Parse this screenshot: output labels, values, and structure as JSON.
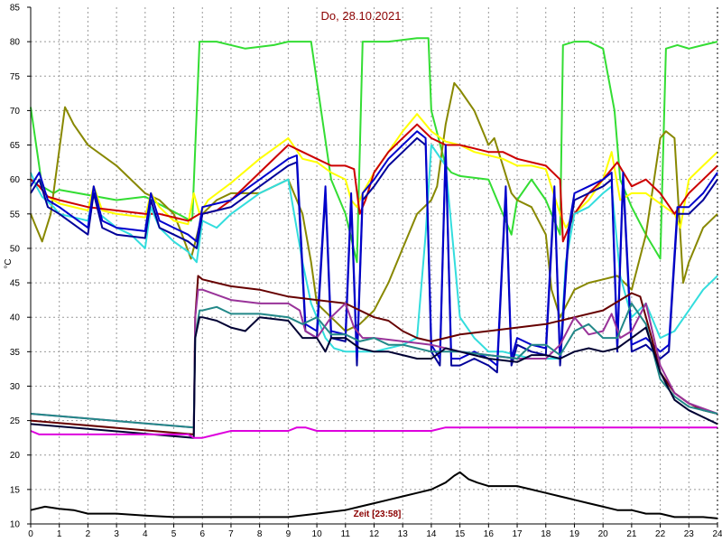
{
  "chart_data": {
    "type": "line",
    "title": "Do, 28.10.2021",
    "ylabel": "°C",
    "time_label": "Zeit [23:58]",
    "xlim": [
      0,
      24
    ],
    "ylim": [
      10,
      85
    ],
    "x_ticks": [
      "0",
      "1",
      "2",
      "3",
      "4",
      "5",
      "6",
      "7",
      "8",
      "9",
      "10",
      "11",
      "12",
      "13",
      "14",
      "15",
      "16",
      "17",
      "18",
      "19",
      "20",
      "21",
      "22",
      "23",
      "24"
    ],
    "y_ticks": [
      "10",
      "15",
      "20",
      "25",
      "30",
      "35",
      "40",
      "45",
      "50",
      "55",
      "60",
      "65",
      "70",
      "75",
      "80",
      "85"
    ],
    "grid": true,
    "series": [
      {
        "color": "#33dd33",
        "x": [
          0,
          0.4,
          0.8,
          1,
          3,
          4,
          5.6,
          5.65,
          5.9,
          6.5,
          7.5,
          8.5,
          9,
          9.2,
          9.8,
          10.5,
          11,
          11.4,
          11.6,
          12,
          12.5,
          13.5,
          13.9,
          14,
          14.5,
          14.7,
          15,
          16,
          16.5,
          16.8,
          17,
          17.5,
          18,
          18.5,
          18.6,
          19,
          19.5,
          20,
          20.4,
          20.6,
          21,
          21.5,
          22,
          22.2,
          22.6,
          23,
          23.5,
          24
        ],
        "y": [
          70.5,
          59,
          58,
          58.5,
          57,
          57.5,
          54,
          54.5,
          80,
          80,
          79,
          79.5,
          80,
          80,
          80,
          60,
          55,
          48,
          80,
          80,
          80,
          80.5,
          80.5,
          70,
          62,
          61,
          60.5,
          60,
          55,
          52,
          57,
          60,
          57,
          52,
          79.5,
          80,
          80,
          79,
          70,
          60,
          56,
          52,
          48.5,
          79,
          79.5,
          79,
          79.5,
          80
        ]
      },
      {
        "color": "#888800",
        "x": [
          0,
          0.2,
          0.4,
          0.7,
          1.2,
          1.5,
          2,
          3,
          4,
          4.5,
          5,
          5.2,
          5.6,
          6,
          6.5,
          7,
          8,
          9,
          9.5,
          9.8,
          10,
          10.5,
          11,
          11.5,
          12,
          12.5,
          13,
          13.5,
          14,
          14.2,
          14.5,
          14.8,
          15,
          15.5,
          16,
          16.2,
          16.5,
          16.8,
          17,
          17.5,
          18,
          18.2,
          18.5,
          19,
          19.5,
          20,
          20.5,
          21,
          21.5,
          22,
          22.2,
          22.5,
          22.8,
          23,
          23.5,
          24
        ],
        "y": [
          55,
          53,
          51,
          55,
          70.5,
          68,
          65,
          62,
          58,
          57,
          55,
          53,
          48.5,
          55,
          57,
          58,
          58,
          60,
          55,
          48,
          42,
          40,
          38,
          39,
          41,
          45,
          50,
          55,
          57,
          59,
          68,
          74,
          73,
          70,
          65,
          66,
          62,
          58,
          57,
          56,
          52,
          44,
          40,
          44,
          45,
          45.5,
          46,
          44,
          52,
          66,
          67,
          66,
          45,
          48,
          53,
          55
        ]
      },
      {
        "color": "#ffff00",
        "x": [
          0,
          0.3,
          0.6,
          1,
          2,
          2.2,
          2.5,
          3,
          4,
          4.2,
          4.5,
          5,
          5.5,
          5.7,
          5.9,
          6.2,
          7,
          8,
          9,
          9.5,
          10,
          10.5,
          11,
          11.2,
          11.4,
          11.6,
          12,
          12.5,
          13,
          13.5,
          14,
          14.5,
          15,
          15.5,
          16,
          16.5,
          17,
          17.5,
          18,
          18.5,
          18.7,
          19,
          19.5,
          20,
          20.3,
          20.6,
          21,
          21.5,
          22,
          22.5,
          22.7,
          23,
          23.5,
          24
        ],
        "y": [
          60,
          59,
          57.5,
          56.5,
          55.5,
          59,
          55.5,
          55,
          54.5,
          58,
          56,
          54,
          53.5,
          58,
          55,
          57,
          59.5,
          63,
          66,
          63,
          62.5,
          61,
          60,
          57,
          56,
          58,
          61,
          64,
          67,
          69.5,
          67,
          65.5,
          65,
          64,
          63.5,
          63,
          62,
          62,
          61.5,
          55,
          53,
          55,
          57,
          60,
          64,
          57,
          58,
          58,
          56.5,
          55,
          53,
          60,
          62,
          64
        ]
      },
      {
        "color": "#cc0000",
        "x": [
          0,
          0.3,
          0.6,
          1,
          2,
          3,
          4,
          4.5,
          5,
          5.5,
          5.9,
          6,
          6.5,
          7,
          8,
          9,
          9.5,
          10,
          10.5,
          11,
          11.3,
          11.5,
          11.7,
          12,
          12.5,
          13,
          13.5,
          14,
          14.5,
          15,
          15.5,
          16,
          16.5,
          17,
          17.5,
          18,
          18.5,
          18.6,
          19,
          19.5,
          20,
          20.5,
          21,
          21.5,
          22,
          22.5,
          23,
          23.5,
          24
        ],
        "y": [
          60,
          59,
          57.5,
          57,
          56,
          55.5,
          55,
          55,
          54.5,
          54,
          55,
          55,
          55.5,
          57,
          61,
          65,
          64,
          63,
          62,
          62,
          61.5,
          55,
          57,
          61,
          64,
          66,
          68,
          66,
          65,
          65,
          64.5,
          64,
          64,
          63,
          62.5,
          62,
          60,
          51,
          55,
          58,
          60,
          62.5,
          59,
          60,
          58,
          55,
          58,
          60,
          62
        ]
      },
      {
        "color": "#33dddd",
        "x": [
          0,
          0.2,
          0.4,
          0.8,
          1,
          2,
          2.2,
          2.4,
          3,
          3.5,
          4,
          4.2,
          4.5,
          5,
          5.5,
          5.8,
          6,
          6.5,
          7,
          8,
          9,
          9.5,
          9.8,
          10,
          10.3,
          10.6,
          11,
          11.5,
          12,
          12.5,
          13,
          13.5,
          13.8,
          14,
          14.5,
          15,
          15.5,
          16,
          16.5,
          17,
          17.5,
          18,
          18.5,
          18.7,
          19,
          19.5,
          20,
          20.3,
          20.6,
          21,
          21.5,
          22,
          22.5,
          23,
          23.5,
          24
        ],
        "y": [
          61,
          59,
          57.5,
          56,
          55,
          54,
          58,
          55,
          53,
          52,
          50,
          56,
          53,
          51,
          49.5,
          48,
          54,
          53,
          55,
          58,
          60,
          48,
          42,
          40,
          37,
          35.5,
          35,
          35,
          35,
          35.5,
          36,
          37,
          52,
          65,
          62,
          40,
          37,
          35,
          35,
          34.5,
          34,
          34,
          34,
          48,
          55,
          56,
          58,
          59,
          46,
          40,
          42,
          37,
          38,
          41,
          44,
          46
        ]
      },
      {
        "color": "#000099",
        "x": [
          0,
          0.3,
          0.6,
          1,
          2,
          2.2,
          2.5,
          3,
          4,
          4.2,
          4.5,
          5,
          5.5,
          5.8,
          6,
          6.5,
          7,
          8,
          9,
          9.3,
          9.6,
          10,
          10.3,
          10.5,
          11,
          11.2,
          11.4,
          11.6,
          12,
          12.5,
          13,
          13.5,
          13.8,
          14,
          14.3,
          14.5,
          14.7,
          15,
          15.5,
          16,
          16.3,
          16.6,
          16.8,
          17,
          17.5,
          18,
          18.3,
          18.5,
          18.8,
          19,
          19.5,
          20,
          20.3,
          20.5,
          20.7,
          21,
          21.5,
          22,
          22.3,
          22.6,
          23,
          23.5,
          24
        ],
        "y": [
          58,
          60,
          56,
          55,
          52,
          58,
          53,
          52,
          51.5,
          57,
          53,
          52,
          51,
          50,
          55,
          55.5,
          56,
          59,
          62,
          62.5,
          38,
          37,
          58,
          37,
          36.5,
          57,
          33,
          57,
          59,
          62,
          64,
          66,
          65,
          35,
          33,
          64,
          33,
          33,
          34,
          33,
          32,
          58,
          33,
          36,
          35,
          34.5,
          58,
          33,
          52,
          57,
          58,
          59,
          60,
          35,
          60,
          35,
          36,
          34,
          35,
          55,
          55,
          57,
          60
        ]
      },
      {
        "color": "#0000cc",
        "x": [
          0,
          0.3,
          0.6,
          1,
          2,
          2.2,
          2.5,
          3,
          4,
          4.2,
          4.5,
          5,
          5.5,
          5.8,
          6,
          6.5,
          7,
          8,
          9,
          9.3,
          9.6,
          10,
          10.3,
          10.5,
          11,
          11.2,
          11.4,
          11.6,
          12,
          12.5,
          13,
          13.5,
          13.8,
          14,
          14.3,
          14.5,
          14.7,
          15,
          15.5,
          16,
          16.3,
          16.6,
          16.8,
          17,
          17.5,
          18,
          18.3,
          18.5,
          18.8,
          19,
          19.5,
          20,
          20.3,
          20.5,
          20.7,
          21,
          21.5,
          22,
          22.3,
          22.6,
          23,
          23.5,
          24
        ],
        "y": [
          59,
          61,
          57,
          56,
          53,
          59,
          54,
          53,
          52.5,
          58,
          54,
          53,
          52,
          51,
          56,
          56.5,
          57,
          60,
          63,
          63.5,
          39,
          38,
          59,
          38,
          37.5,
          58,
          34,
          58,
          60,
          63,
          65,
          67,
          66,
          36,
          34,
          65,
          34,
          34,
          35,
          34,
          33,
          59,
          34,
          37,
          36,
          35.5,
          59,
          34,
          53,
          58,
          59,
          60,
          61,
          36,
          61,
          36,
          37,
          35,
          36,
          56,
          56,
          58,
          61
        ]
      },
      {
        "color": "#660000",
        "x": [
          0,
          5.7,
          5.75,
          5.85,
          6,
          6.5,
          7,
          8,
          9,
          10,
          11,
          12,
          12.5,
          13,
          13.5,
          14,
          14.5,
          15,
          16,
          17,
          18,
          19,
          20,
          21,
          21.3,
          21.7,
          22,
          22.5,
          23,
          23.5,
          24
        ],
        "y": [
          25,
          23,
          40,
          46,
          45.5,
          45,
          44.5,
          44,
          43,
          42.5,
          42,
          40,
          39.5,
          38,
          37,
          36.5,
          37,
          37.5,
          38,
          38.5,
          39,
          40,
          41,
          43.5,
          43,
          37,
          32,
          29,
          27.5,
          26.5,
          26
        ]
      },
      {
        "color": "#993399",
        "x": [
          0,
          5.7,
          5.75,
          5.85,
          6,
          7,
          8,
          9,
          9.4,
          9.6,
          10,
          10.5,
          11,
          11.3,
          11.6,
          12,
          13,
          14,
          14.5,
          15,
          16,
          17,
          18,
          18.5,
          19,
          19.5,
          20,
          20.3,
          20.6,
          21,
          21.5,
          22,
          22.5,
          23,
          24
        ],
        "y": [
          26,
          24,
          40,
          44,
          44,
          42.5,
          42,
          42,
          41,
          38,
          37,
          40,
          42,
          38.5,
          37,
          37,
          36.5,
          36,
          35.5,
          35,
          34.5,
          34,
          34,
          36,
          40,
          37.5,
          38,
          40.5,
          37,
          38,
          42,
          33,
          29,
          27.5,
          26
        ]
      },
      {
        "color": "#228888",
        "x": [
          0,
          5.7,
          5.75,
          5.9,
          6,
          6.5,
          7,
          8,
          9,
          9.5,
          10,
          10.5,
          11,
          11.5,
          12,
          12.5,
          13,
          13.5,
          14,
          14.5,
          15,
          16,
          17,
          17.5,
          18,
          18.5,
          19,
          19.5,
          20,
          20.5,
          21,
          21.5,
          22,
          22.5,
          23,
          24
        ],
        "y": [
          26,
          24,
          37,
          41,
          41,
          41.5,
          40.5,
          40.5,
          40,
          39,
          40,
          37.5,
          37.5,
          36.5,
          37,
          36,
          36,
          35.5,
          35,
          35,
          35,
          34.5,
          34,
          36,
          36,
          34.5,
          38,
          39,
          37,
          37,
          42,
          39,
          31,
          28.5,
          27,
          26
        ]
      },
      {
        "color": "#000033",
        "x": [
          0,
          5.7,
          5.75,
          5.9,
          6,
          6.5,
          7,
          7.5,
          8,
          9,
          9.5,
          10,
          10.3,
          10.5,
          11,
          11.5,
          12,
          12.5,
          13,
          13.5,
          14,
          14.5,
          15,
          16,
          17,
          17.5,
          18,
          18.5,
          19,
          19.5,
          20,
          20.5,
          21,
          21.5,
          22,
          22.5,
          23,
          24
        ],
        "y": [
          24.5,
          22.5,
          37,
          40,
          40,
          39.5,
          38.5,
          38,
          40,
          39.5,
          37,
          37,
          35,
          37,
          37,
          35.5,
          35,
          35,
          34.5,
          34,
          34,
          35.5,
          35,
          34,
          33.5,
          34.5,
          34.5,
          34,
          35,
          35.5,
          35,
          35.5,
          37,
          38.5,
          32,
          28,
          26.5,
          24.5
        ]
      },
      {
        "color": "#dd00dd",
        "x": [
          0,
          0.3,
          1,
          2,
          3,
          4,
          5,
          5.5,
          5.7,
          6,
          6.5,
          7,
          8,
          8.5,
          9,
          9.3,
          9.6,
          10,
          10.5,
          11,
          12,
          13,
          13.5,
          14,
          14.5,
          15,
          16,
          17,
          18,
          19,
          20,
          21,
          22,
          23,
          24
        ],
        "y": [
          23.5,
          23,
          23,
          23,
          23,
          23,
          23,
          23,
          22.5,
          22.5,
          23,
          23.5,
          23.5,
          23.5,
          23.5,
          24,
          24,
          23.5,
          23.5,
          23.5,
          23.5,
          23.5,
          23.5,
          23.5,
          24,
          24,
          24,
          24,
          24,
          24,
          24,
          24,
          24,
          24,
          24
        ]
      },
      {
        "color": "#000000",
        "x": [
          0,
          0.5,
          1,
          1.5,
          2,
          3,
          4,
          5,
          6,
          7,
          8,
          9,
          10,
          11,
          11.5,
          12,
          12.5,
          13,
          13.5,
          14,
          14.5,
          14.8,
          15,
          15.3,
          15.6,
          16,
          16.5,
          17,
          17.5,
          18,
          18.5,
          19,
          19.5,
          20,
          20.5,
          21,
          21.5,
          22,
          22.5,
          23,
          23.5,
          24
        ],
        "y": [
          12,
          12.5,
          12.2,
          12,
          11.5,
          11.5,
          11.2,
          11,
          11,
          11,
          11,
          11,
          11.5,
          12,
          12.5,
          13,
          13.5,
          14,
          14.5,
          15,
          16,
          17,
          17.5,
          16.5,
          16,
          15.5,
          15.5,
          15.5,
          15,
          14.5,
          14,
          13.5,
          13,
          12.5,
          12,
          12,
          11.5,
          11.5,
          11,
          11,
          11,
          10.8
        ]
      }
    ]
  }
}
